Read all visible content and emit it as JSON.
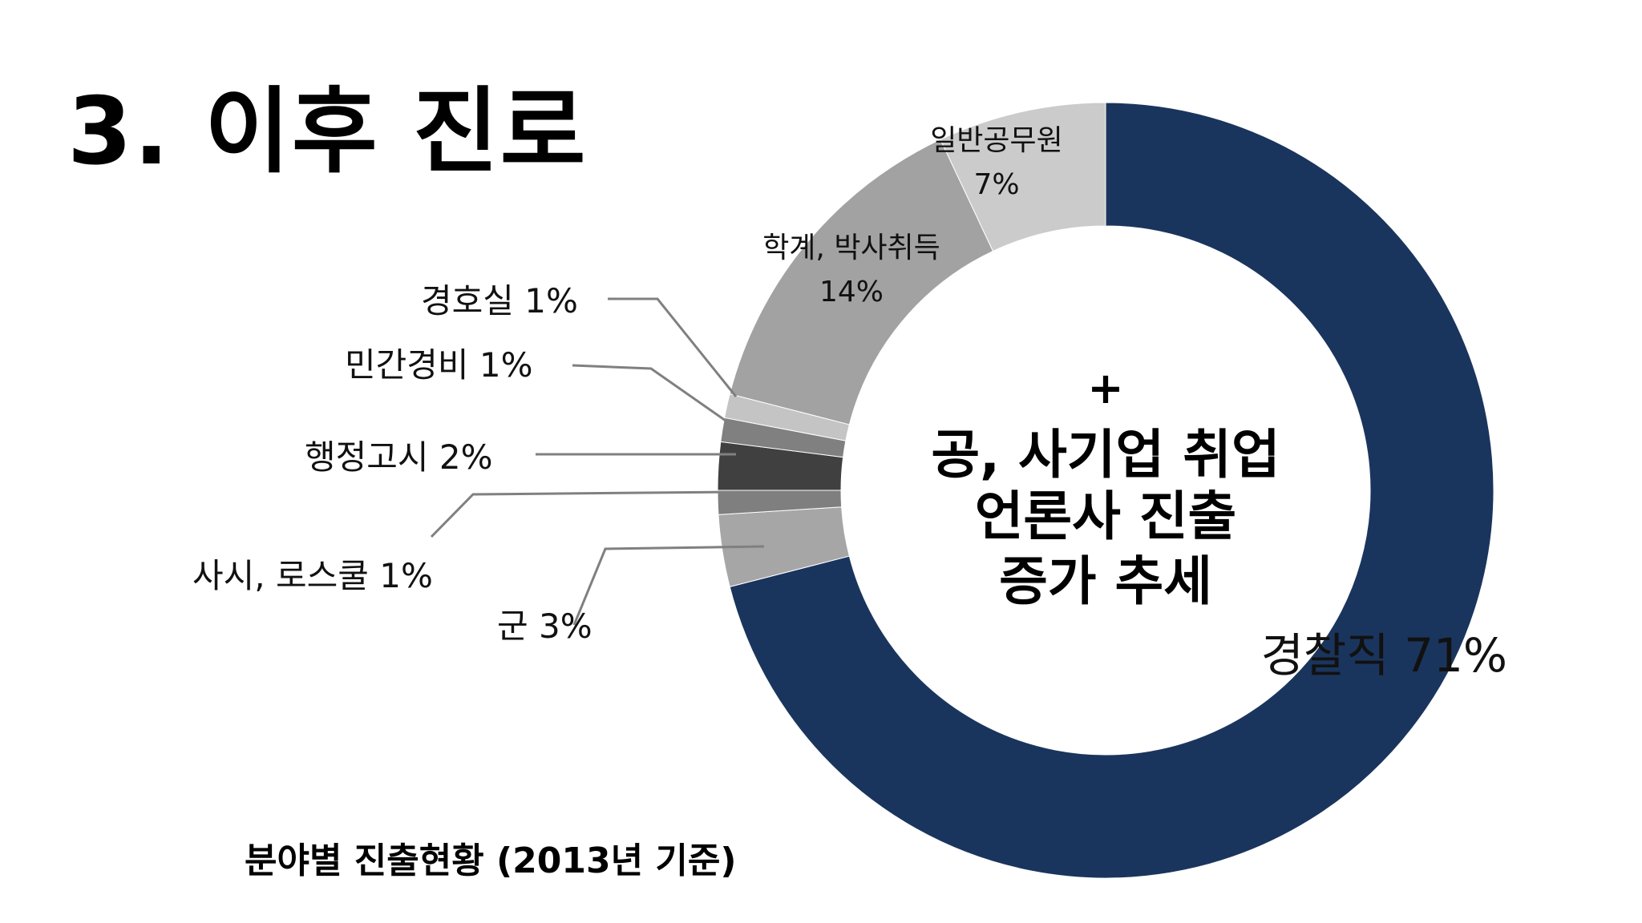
{
  "slide": {
    "title": "3. 이후 진로",
    "caption": "분야별 진출현황 (2013년 기준)"
  },
  "center": {
    "plus": "+",
    "lines": [
      "공, 사기업 취업",
      "언론사 진출",
      "증가 추세"
    ]
  },
  "chart_data": {
    "type": "pie",
    "variant": "donut",
    "title": "",
    "unit": "%",
    "start": "top, clockwise",
    "slices": [
      {
        "name": "경찰직",
        "value": 71,
        "label": "경찰직 71%",
        "color": "#1a355d",
        "label_placement": "inside"
      },
      {
        "name": "군",
        "value": 3,
        "label": "군 3%",
        "color": "#a6a6a6",
        "label_placement": "leader-left"
      },
      {
        "name": "사시, 로스쿨",
        "value": 1,
        "label": "사시, 로스쿨 1%",
        "color": "#7f7f7f",
        "label_placement": "leader-left"
      },
      {
        "name": "행정고시",
        "value": 2,
        "label": "행정고시 2%",
        "color": "#404040",
        "label_placement": "leader-left"
      },
      {
        "name": "민간경비",
        "value": 1,
        "label": "민간경비 1%",
        "color": "#808080",
        "label_placement": "leader-left"
      },
      {
        "name": "경호실",
        "value": 1,
        "label": "경호실 1%",
        "color": "#c4c4c4",
        "label_placement": "leader-left"
      },
      {
        "name": "학계, 박사취득",
        "value": 14,
        "label_lines": [
          "학계, 박사취득",
          "14%"
        ],
        "color": "#a2a2a2",
        "label_placement": "inside"
      },
      {
        "name": "일반공무원",
        "value": 7,
        "label_lines": [
          "일반공무원",
          "7%"
        ],
        "color": "#cbcbcb",
        "label_placement": "inside"
      }
    ]
  }
}
